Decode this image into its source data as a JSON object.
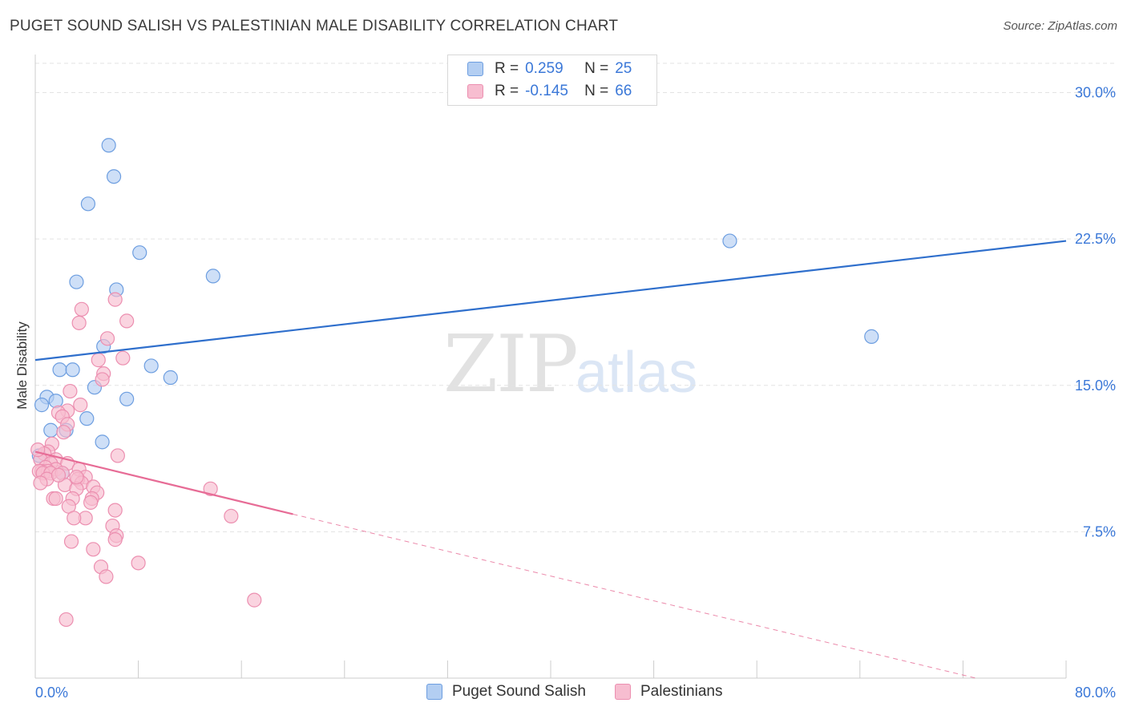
{
  "header": {
    "title": "PUGET SOUND SALISH VS PALESTINIAN MALE DISABILITY CORRELATION CHART",
    "source": "Source: ZipAtlas.com"
  },
  "watermark": {
    "zip": "ZIP",
    "atlas": "atlas"
  },
  "legend_top": {
    "rows": [
      {
        "r_label": "R =",
        "r_value": "0.259",
        "n_label": "N =",
        "n_value": "25"
      },
      {
        "r_label": "R =",
        "r_value": "-0.145",
        "n_label": "N =",
        "n_value": "66"
      }
    ]
  },
  "legend_bottom": {
    "items": [
      {
        "label": "Puget Sound Salish"
      },
      {
        "label": "Palestinians"
      }
    ]
  },
  "colors": {
    "blue_fill": "#b3cef2",
    "blue_stroke": "#6d9ee0",
    "blue_line": "#2f6fcc",
    "pink_fill": "#f7bdd0",
    "pink_stroke": "#ec8fb0",
    "pink_line": "#e76c96",
    "axis_text": "#3b78d8",
    "grid": "#e3e3e3"
  },
  "chart_data": {
    "type": "scatter",
    "title": "PUGET SOUND SALISH VS PALESTINIAN MALE DISABILITY CORRELATION CHART",
    "xlabel": "",
    "ylabel": "Male Disability",
    "xlim": [
      0,
      80
    ],
    "ylim": [
      0,
      31.5
    ],
    "x_tick_labels": [
      {
        "value": 0,
        "label": "0.0%"
      },
      {
        "value": 80,
        "label": "80.0%"
      }
    ],
    "y_tick_labels": [
      {
        "value": 7.5,
        "label": "7.5%"
      },
      {
        "value": 15.0,
        "label": "15.0%"
      },
      {
        "value": 22.5,
        "label": "22.5%"
      },
      {
        "value": 30.0,
        "label": "30.0%"
      }
    ],
    "x_minor_ticks": [
      8,
      16,
      24,
      32,
      40,
      48,
      56,
      64,
      72,
      80
    ],
    "series": [
      {
        "name": "Puget Sound Salish",
        "color": "blue",
        "points": [
          [
            5.7,
            27.3
          ],
          [
            6.1,
            25.7
          ],
          [
            4.1,
            24.3
          ],
          [
            8.1,
            21.8
          ],
          [
            3.2,
            20.3
          ],
          [
            13.8,
            20.6
          ],
          [
            6.3,
            19.9
          ],
          [
            5.3,
            17.0
          ],
          [
            1.9,
            15.8
          ],
          [
            2.9,
            15.8
          ],
          [
            9.0,
            16.0
          ],
          [
            10.5,
            15.4
          ],
          [
            4.6,
            14.9
          ],
          [
            7.1,
            14.3
          ],
          [
            0.9,
            14.4
          ],
          [
            1.6,
            14.2
          ],
          [
            0.5,
            14.0
          ],
          [
            4.0,
            13.3
          ],
          [
            1.2,
            12.7
          ],
          [
            2.4,
            12.7
          ],
          [
            5.2,
            12.1
          ],
          [
            0.3,
            11.4
          ],
          [
            2.1,
            10.5
          ],
          [
            53.9,
            22.4
          ],
          [
            64.9,
            17.5
          ]
        ],
        "trend": {
          "x0": 0,
          "y0": 16.3,
          "x1": 80,
          "y1": 22.4,
          "dashed_to": null
        }
      },
      {
        "name": "Palestinians",
        "color": "pink",
        "points": [
          [
            6.2,
            19.4
          ],
          [
            3.6,
            18.9
          ],
          [
            3.4,
            18.2
          ],
          [
            7.1,
            18.3
          ],
          [
            5.6,
            17.4
          ],
          [
            6.8,
            16.4
          ],
          [
            4.9,
            16.3
          ],
          [
            5.3,
            15.6
          ],
          [
            5.2,
            15.3
          ],
          [
            2.7,
            14.7
          ],
          [
            3.5,
            14.0
          ],
          [
            2.5,
            13.7
          ],
          [
            1.8,
            13.6
          ],
          [
            2.1,
            13.4
          ],
          [
            2.5,
            13.0
          ],
          [
            1.3,
            12.0
          ],
          [
            2.2,
            12.6
          ],
          [
            1.0,
            11.6
          ],
          [
            0.7,
            11.5
          ],
          [
            0.4,
            11.2
          ],
          [
            1.6,
            11.2
          ],
          [
            6.4,
            11.4
          ],
          [
            1.2,
            11.0
          ],
          [
            2.5,
            11.0
          ],
          [
            0.8,
            10.8
          ],
          [
            1.6,
            10.7
          ],
          [
            3.4,
            10.7
          ],
          [
            0.5,
            10.6
          ],
          [
            1.0,
            10.6
          ],
          [
            0.3,
            10.6
          ],
          [
            0.6,
            10.5
          ],
          [
            1.2,
            10.5
          ],
          [
            2.1,
            10.5
          ],
          [
            3.9,
            10.3
          ],
          [
            0.9,
            10.2
          ],
          [
            3.3,
            10.2
          ],
          [
            0.4,
            10.0
          ],
          [
            3.6,
            10.0
          ],
          [
            2.3,
            9.9
          ],
          [
            4.5,
            9.8
          ],
          [
            3.2,
            9.7
          ],
          [
            4.8,
            9.5
          ],
          [
            13.6,
            9.7
          ],
          [
            4.4,
            9.2
          ],
          [
            1.4,
            9.2
          ],
          [
            1.6,
            9.2
          ],
          [
            2.9,
            9.2
          ],
          [
            4.3,
            9.0
          ],
          [
            2.6,
            8.8
          ],
          [
            6.2,
            8.6
          ],
          [
            3.9,
            8.2
          ],
          [
            15.2,
            8.3
          ],
          [
            3.0,
            8.2
          ],
          [
            6.0,
            7.8
          ],
          [
            6.3,
            7.3
          ],
          [
            6.2,
            7.1
          ],
          [
            2.8,
            7.0
          ],
          [
            4.5,
            6.6
          ],
          [
            8.0,
            5.9
          ],
          [
            5.1,
            5.7
          ],
          [
            5.5,
            5.2
          ],
          [
            17.0,
            4.0
          ],
          [
            2.4,
            3.0
          ],
          [
            0.2,
            11.7
          ],
          [
            1.8,
            10.4
          ],
          [
            3.2,
            10.3
          ]
        ],
        "trend": {
          "x0": 0,
          "y0": 11.6,
          "x1": 20,
          "y1": 8.4,
          "dashed_to": {
            "x": 73,
            "y": 0
          }
        }
      }
    ]
  }
}
